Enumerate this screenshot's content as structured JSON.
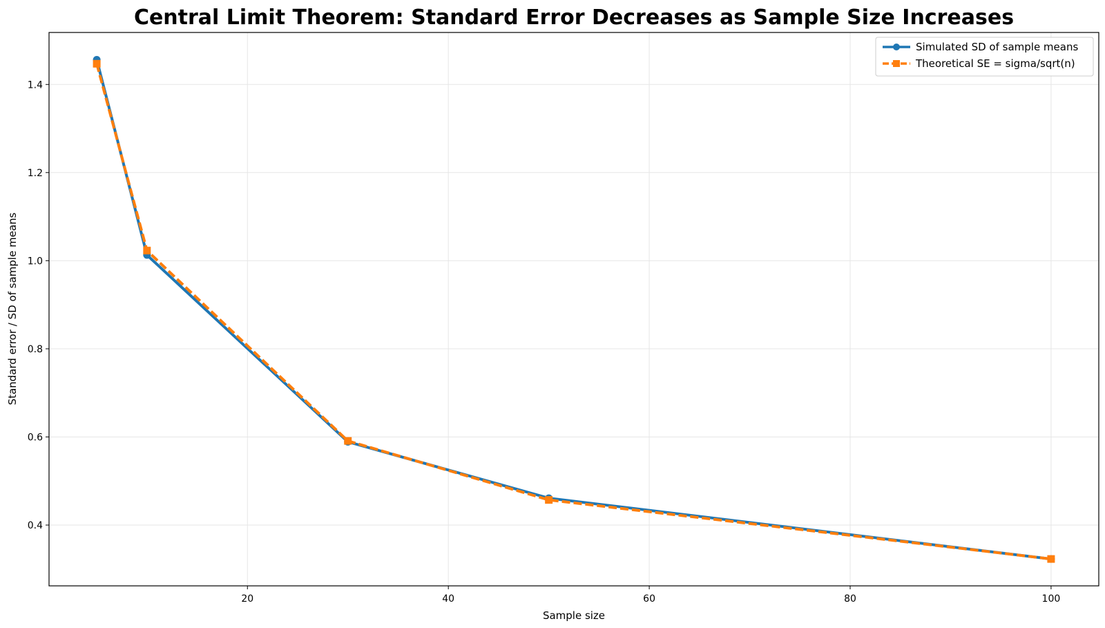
{
  "chart_data": {
    "type": "line",
    "title": "Central Limit Theorem: Standard Error Decreases as Sample Size Increases",
    "xlabel": "Sample size",
    "ylabel": "Standard error / SD of sample means",
    "xlim": [
      0.25,
      104.75
    ],
    "ylim": [
      0.262,
      1.518
    ],
    "xticks": [
      20,
      40,
      60,
      80,
      100
    ],
    "yticks": [
      0.4,
      0.6,
      0.8,
      1.0,
      1.2,
      1.4
    ],
    "grid": true,
    "legend_position": "top-right",
    "series": [
      {
        "name": "Simulated SD of sample means",
        "color": "#1f77b4",
        "line_style": "solid",
        "marker": "circle",
        "x": [
          5,
          10,
          30,
          50,
          100
        ],
        "y": [
          1.456,
          1.013,
          0.589,
          0.461,
          0.323
        ]
      },
      {
        "name": "Theoretical SE = sigma/sqrt(n)",
        "color": "#ff7f0e",
        "line_style": "dashed",
        "marker": "square",
        "x": [
          5,
          10,
          30,
          50,
          100
        ],
        "y": [
          1.447,
          1.023,
          0.591,
          0.457,
          0.323
        ]
      }
    ]
  }
}
